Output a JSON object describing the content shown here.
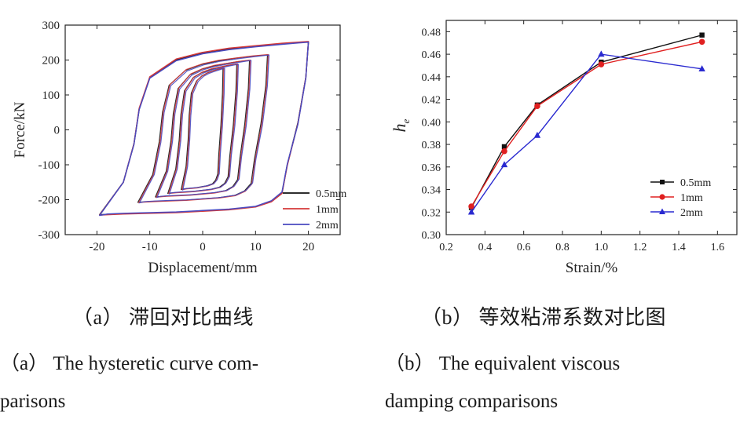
{
  "captions": {
    "a_cn": "（a） 滞回对比曲线",
    "b_cn": "（b） 等效粘滞系数对比图",
    "a_en_line1": "（a）  The hysteretic curve com-",
    "a_en_line2": "parisons",
    "b_en_line1": "（b）   The   equivalent   viscous",
    "b_en_line2": "damping comparisons"
  },
  "chart_data": [
    {
      "type": "line",
      "xlabel": "Displacement/mm",
      "ylabel": "Force/kN",
      "xlim": [
        -26,
        26
      ],
      "ylim": [
        -300,
        300
      ],
      "xticks": [
        -20,
        -10,
        0,
        10,
        20
      ],
      "yticks": [
        -300,
        -200,
        -100,
        0,
        100,
        200,
        300
      ],
      "grid": false,
      "legend": "lower-right",
      "series": [
        {
          "name": "0.5mm",
          "color": "#111111",
          "x": [
            -19.5,
            -15,
            -13,
            -12,
            -10,
            -5,
            0,
            5,
            10,
            15,
            18,
            20,
            19.5,
            18,
            16,
            15,
            13,
            10,
            5,
            0,
            -5,
            -10,
            -15,
            -18,
            -19.5
          ],
          "y": [
            -243,
            -150,
            -40,
            60,
            150,
            200,
            220,
            232,
            240,
            247,
            250,
            252,
            150,
            20,
            -100,
            -180,
            -205,
            -220,
            -228,
            -232,
            -236,
            -238,
            -240,
            -242,
            -243
          ]
        },
        {
          "name": "1mm",
          "color": "#d43a3a",
          "x": [
            -19.5,
            -15,
            -13,
            -12,
            -10,
            -5,
            0,
            5,
            10,
            15,
            18,
            20,
            19.5,
            18,
            16,
            15,
            13,
            10,
            5,
            0,
            -5,
            -10,
            -15,
            -18,
            -19.5
          ],
          "y": [
            -244,
            -150,
            -40,
            62,
            152,
            203,
            222,
            234,
            241,
            248,
            251,
            253,
            150,
            18,
            -102,
            -182,
            -206,
            -221,
            -229,
            -233,
            -237,
            -239,
            -241,
            -243,
            -244
          ]
        },
        {
          "name": "2mm",
          "color": "#4a4ac0",
          "x": [
            -19.5,
            -15,
            -13,
            -12,
            -10,
            -5,
            0,
            5,
            10,
            15,
            18,
            20,
            19.5,
            18,
            16,
            15,
            13,
            10,
            5,
            0,
            -5,
            -10,
            -15,
            -18,
            -19.5
          ],
          "y": [
            -245,
            -150,
            -42,
            58,
            148,
            198,
            218,
            230,
            238,
            245,
            249,
            251,
            148,
            16,
            -98,
            -178,
            -203,
            -219,
            -227,
            -231,
            -235,
            -237,
            -239,
            -241,
            -245
          ]
        }
      ]
    },
    {
      "type": "line",
      "xlabel": "Strain/%",
      "ylabel": "h_e",
      "xlim": [
        0.2,
        1.7
      ],
      "ylim": [
        0.3,
        0.49
      ],
      "xticks": [
        0.2,
        0.4,
        0.6,
        0.8,
        1.0,
        1.2,
        1.4,
        1.6
      ],
      "yticks": [
        0.3,
        0.32,
        0.34,
        0.36,
        0.38,
        0.4,
        0.42,
        0.44,
        0.46,
        0.48
      ],
      "grid": false,
      "legend": "lower-right",
      "series": [
        {
          "name": "0.5mm",
          "color": "#111111",
          "marker": "square",
          "x": [
            0.33,
            0.5,
            0.67,
            1.0,
            1.52
          ],
          "y": [
            0.324,
            0.378,
            0.415,
            0.453,
            0.477
          ]
        },
        {
          "name": "1mm",
          "color": "#e02020",
          "marker": "circle",
          "x": [
            0.33,
            0.5,
            0.67,
            1.0,
            1.52
          ],
          "y": [
            0.325,
            0.374,
            0.414,
            0.451,
            0.471
          ]
        },
        {
          "name": "2mm",
          "color": "#2a2ad0",
          "marker": "triangle",
          "x": [
            0.33,
            0.5,
            0.67,
            1.0,
            1.52
          ],
          "y": [
            0.32,
            0.362,
            0.388,
            0.46,
            0.447
          ]
        }
      ]
    }
  ]
}
